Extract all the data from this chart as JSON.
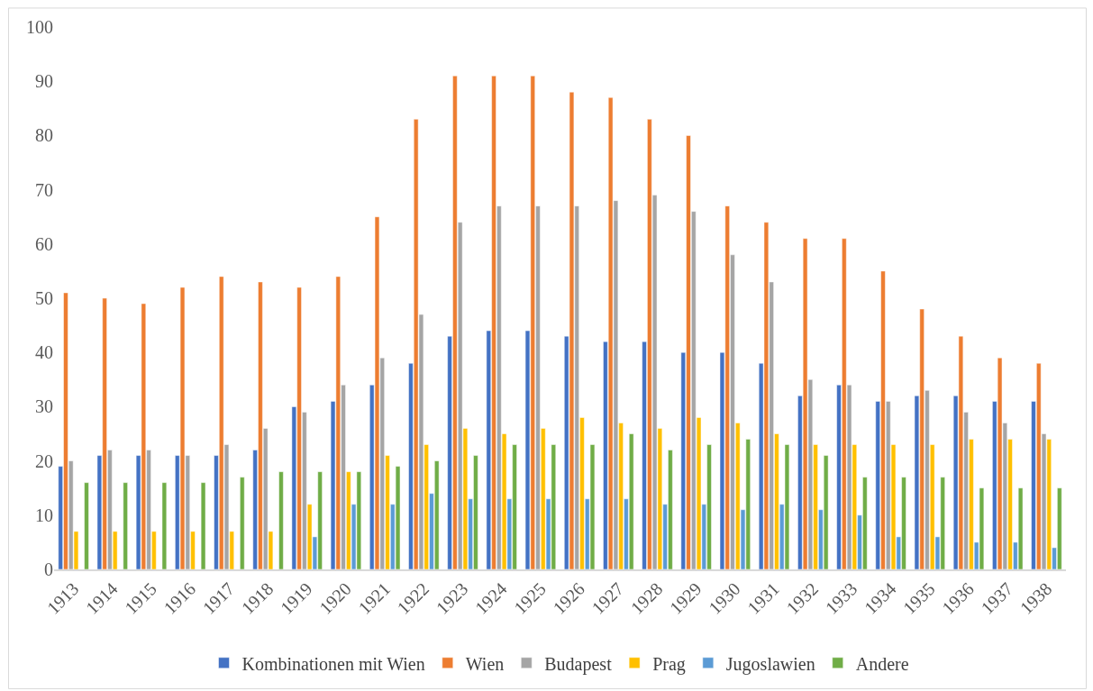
{
  "chart_data": {
    "type": "bar",
    "categories": [
      "1913",
      "1914",
      "1915",
      "1916",
      "1917",
      "1918",
      "1919",
      "1920",
      "1921",
      "1922",
      "1923",
      "1924",
      "1925",
      "1926",
      "1927",
      "1928",
      "1929",
      "1930",
      "1931",
      "1932",
      "1933",
      "1934",
      "1935",
      "1936",
      "1937",
      "1938"
    ],
    "series": [
      {
        "name": "Kombinationen mit Wien",
        "color": "#4472c4",
        "values": [
          19,
          21,
          21,
          21,
          21,
          22,
          30,
          31,
          34,
          38,
          43,
          44,
          44,
          43,
          42,
          42,
          40,
          40,
          38,
          32,
          34,
          31,
          32,
          32,
          31,
          31
        ]
      },
      {
        "name": "Wien",
        "color": "#ed7d31",
        "values": [
          51,
          50,
          49,
          52,
          54,
          53,
          52,
          54,
          65,
          83,
          91,
          91,
          91,
          88,
          87,
          83,
          80,
          67,
          64,
          61,
          61,
          55,
          48,
          43,
          39,
          38
        ]
      },
      {
        "name": "Budapest",
        "color": "#a5a5a5",
        "values": [
          20,
          22,
          22,
          21,
          23,
          26,
          29,
          34,
          39,
          47,
          64,
          67,
          67,
          67,
          68,
          69,
          66,
          58,
          53,
          35,
          34,
          31,
          33,
          29,
          27,
          25
        ]
      },
      {
        "name": "Prag",
        "color": "#ffc000",
        "values": [
          7,
          7,
          7,
          7,
          7,
          7,
          12,
          18,
          21,
          23,
          26,
          25,
          26,
          28,
          27,
          26,
          28,
          27,
          25,
          23,
          23,
          23,
          23,
          24,
          24,
          24
        ]
      },
      {
        "name": "Jugoslawien",
        "color": "#5b9bd5",
        "values": [
          null,
          null,
          null,
          null,
          null,
          null,
          6,
          12,
          12,
          14,
          13,
          13,
          13,
          13,
          13,
          12,
          12,
          11,
          12,
          11,
          10,
          6,
          6,
          5,
          5,
          4
        ]
      },
      {
        "name": "Andere",
        "color": "#70ad47",
        "values": [
          16,
          16,
          16,
          16,
          17,
          18,
          18,
          18,
          19,
          20,
          21,
          23,
          23,
          23,
          25,
          22,
          23,
          24,
          23,
          21,
          17,
          17,
          17,
          15,
          15,
          15
        ]
      }
    ],
    "ylim": [
      0,
      100
    ],
    "yticks": [
      0,
      10,
      20,
      30,
      40,
      50,
      60,
      70,
      80,
      90,
      100
    ],
    "grid": false,
    "legend": "bottom"
  }
}
